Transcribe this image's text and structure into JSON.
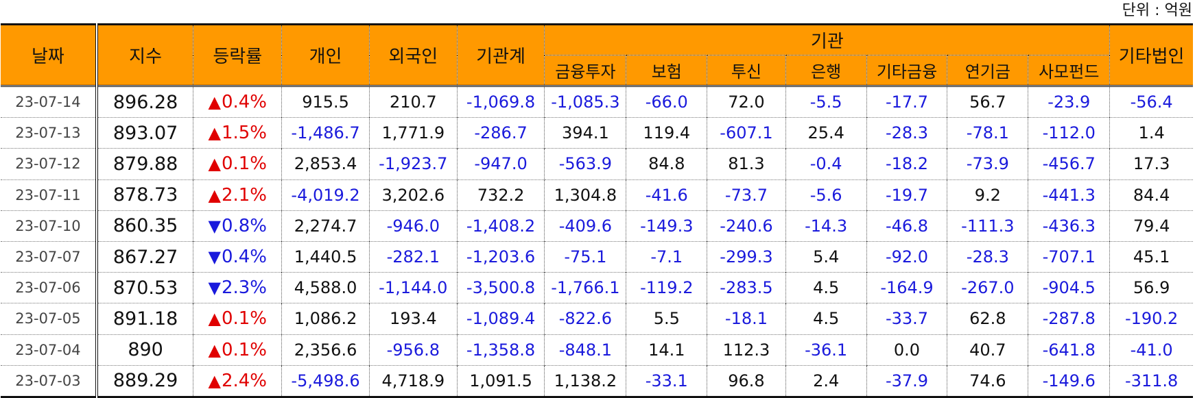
{
  "unit_label": "단위 : 억원",
  "headers": {
    "date": "날짜",
    "index": "지수",
    "change": "등락률",
    "individual": "개인",
    "foreign": "외국인",
    "inst_total": "기관계",
    "inst": "기관",
    "other_corp": "기타법인",
    "inst_sub": [
      "금융투자",
      "보험",
      "투신",
      "은행",
      "기타금융",
      "연기금",
      "사모펀드"
    ]
  },
  "arrows": {
    "up": "▲",
    "down": "▼"
  },
  "colors": {
    "header_bg": "#ff9900",
    "negative": "#1a1adc",
    "up": "#e00000",
    "down": "#1a1adc"
  },
  "rows": [
    {
      "date": "23-07-14",
      "index": "896.28",
      "change": "0.4%",
      "dir": "up",
      "individual": "915.5",
      "foreign": "210.7",
      "inst_total": "-1,069.8",
      "fin_invest": "-1,085.3",
      "insurance": "-66.0",
      "trust": "72.0",
      "bank": "-5.5",
      "other_fin": "-17.7",
      "pension": "56.7",
      "pef": "-23.9",
      "other_corp": "-56.4"
    },
    {
      "date": "23-07-13",
      "index": "893.07",
      "change": "1.5%",
      "dir": "up",
      "individual": "-1,486.7",
      "foreign": "1,771.9",
      "inst_total": "-286.7",
      "fin_invest": "394.1",
      "insurance": "119.4",
      "trust": "-607.1",
      "bank": "25.4",
      "other_fin": "-28.3",
      "pension": "-78.1",
      "pef": "-112.0",
      "other_corp": "1.4"
    },
    {
      "date": "23-07-12",
      "index": "879.88",
      "change": "0.1%",
      "dir": "up",
      "individual": "2,853.4",
      "foreign": "-1,923.7",
      "inst_total": "-947.0",
      "fin_invest": "-563.9",
      "insurance": "84.8",
      "trust": "81.3",
      "bank": "-0.4",
      "other_fin": "-18.2",
      "pension": "-73.9",
      "pef": "-456.7",
      "other_corp": "17.3"
    },
    {
      "date": "23-07-11",
      "index": "878.73",
      "change": "2.1%",
      "dir": "up",
      "individual": "-4,019.2",
      "foreign": "3,202.6",
      "inst_total": "732.2",
      "fin_invest": "1,304.8",
      "insurance": "-41.6",
      "trust": "-73.7",
      "bank": "-5.6",
      "other_fin": "-19.7",
      "pension": "9.2",
      "pef": "-441.3",
      "other_corp": "84.4"
    },
    {
      "date": "23-07-10",
      "index": "860.35",
      "change": "0.8%",
      "dir": "down",
      "individual": "2,274.7",
      "foreign": "-946.0",
      "inst_total": "-1,408.2",
      "fin_invest": "-409.6",
      "insurance": "-149.3",
      "trust": "-240.6",
      "bank": "-14.3",
      "other_fin": "-46.8",
      "pension": "-111.3",
      "pef": "-436.3",
      "other_corp": "79.4"
    },
    {
      "date": "23-07-07",
      "index": "867.27",
      "change": "0.4%",
      "dir": "down",
      "individual": "1,440.5",
      "foreign": "-282.1",
      "inst_total": "-1,203.6",
      "fin_invest": "-75.1",
      "insurance": "-7.1",
      "trust": "-299.3",
      "bank": "5.4",
      "other_fin": "-92.0",
      "pension": "-28.3",
      "pef": "-707.1",
      "other_corp": "45.1"
    },
    {
      "date": "23-07-06",
      "index": "870.53",
      "change": "2.3%",
      "dir": "down",
      "individual": "4,588.0",
      "foreign": "-1,144.0",
      "inst_total": "-3,500.8",
      "fin_invest": "-1,766.1",
      "insurance": "-119.2",
      "trust": "-283.5",
      "bank": "4.5",
      "other_fin": "-164.9",
      "pension": "-267.0",
      "pef": "-904.5",
      "other_corp": "56.9"
    },
    {
      "date": "23-07-05",
      "index": "891.18",
      "change": "0.1%",
      "dir": "up",
      "individual": "1,086.2",
      "foreign": "193.4",
      "inst_total": "-1,089.4",
      "fin_invest": "-822.6",
      "insurance": "5.5",
      "trust": "-18.1",
      "bank": "4.5",
      "other_fin": "-33.7",
      "pension": "62.8",
      "pef": "-287.8",
      "other_corp": "-190.2"
    },
    {
      "date": "23-07-04",
      "index": "890",
      "change": "0.1%",
      "dir": "up",
      "individual": "2,356.6",
      "foreign": "-956.8",
      "inst_total": "-1,358.8",
      "fin_invest": "-848.1",
      "insurance": "14.1",
      "trust": "112.3",
      "bank": "-36.1",
      "other_fin": "0.0",
      "pension": "40.7",
      "pef": "-641.8",
      "other_corp": "-41.0"
    },
    {
      "date": "23-07-03",
      "index": "889.29",
      "change": "2.4%",
      "dir": "up",
      "individual": "-5,498.6",
      "foreign": "4,718.9",
      "inst_total": "1,091.5",
      "fin_invest": "1,138.2",
      "insurance": "-33.1",
      "trust": "96.8",
      "bank": "2.4",
      "other_fin": "-37.9",
      "pension": "74.6",
      "pef": "-149.6",
      "other_corp": "-311.8"
    }
  ]
}
